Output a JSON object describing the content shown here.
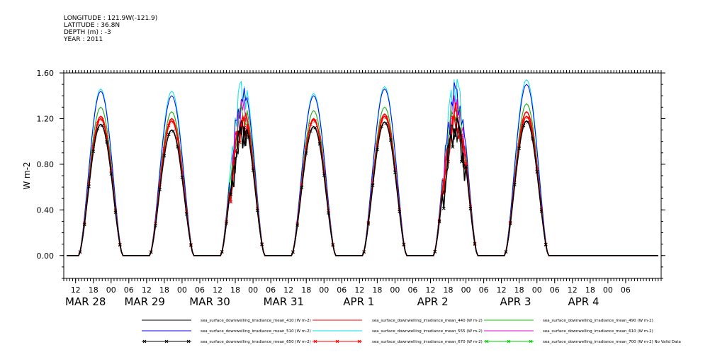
{
  "header": {
    "longitude": "LONGITUDE : 121.9W(-121.9)",
    "latitude": "LATITUDE : 36.8N",
    "depth": "DEPTH (m) : -3",
    "year": "YEAR : 2011"
  },
  "chart_data": {
    "type": "line",
    "title": "",
    "xlabel": "",
    "ylabel": "W m-2",
    "ylim": [
      -0.2,
      1.6
    ],
    "xlim_hours": [
      8,
      210
    ],
    "y_ticks": [
      0.0,
      0.4,
      0.8,
      1.2,
      1.6
    ],
    "y_tick_labels": [
      "0.00",
      "0.40",
      "0.80",
      "1.20",
      "1.60"
    ],
    "x_hour_ticks": [
      {
        "h": 12,
        "label": "12"
      },
      {
        "h": 18,
        "label": "18"
      },
      {
        "h": 24,
        "label": "00"
      },
      {
        "h": 30,
        "label": "06"
      },
      {
        "h": 36,
        "label": "12"
      },
      {
        "h": 42,
        "label": "18"
      },
      {
        "h": 48,
        "label": "00"
      },
      {
        "h": 54,
        "label": "06"
      },
      {
        "h": 60,
        "label": "12"
      },
      {
        "h": 66,
        "label": "18"
      },
      {
        "h": 72,
        "label": "00"
      },
      {
        "h": 78,
        "label": "06"
      },
      {
        "h": 84,
        "label": "12"
      },
      {
        "h": 90,
        "label": "18"
      },
      {
        "h": 96,
        "label": "00"
      },
      {
        "h": 102,
        "label": "06"
      },
      {
        "h": 108,
        "label": "12"
      },
      {
        "h": 114,
        "label": "18"
      },
      {
        "h": 120,
        "label": "00"
      },
      {
        "h": 126,
        "label": "06"
      },
      {
        "h": 132,
        "label": "12"
      },
      {
        "h": 138,
        "label": "18"
      },
      {
        "h": 144,
        "label": "00"
      },
      {
        "h": 150,
        "label": "06"
      },
      {
        "h": 156,
        "label": "12"
      },
      {
        "h": 162,
        "label": "18"
      },
      {
        "h": 168,
        "label": "00"
      },
      {
        "h": 174,
        "label": "06"
      },
      {
        "h": 180,
        "label": "12"
      },
      {
        "h": 186,
        "label": "18"
      },
      {
        "h": 192,
        "label": "00"
      },
      {
        "h": 198,
        "label": "06"
      }
    ],
    "x_date_labels": [
      {
        "h": 8,
        "label": "MAR 28"
      },
      {
        "h": 28,
        "label": "MAR 29"
      },
      {
        "h": 50,
        "label": "MAR 30"
      },
      {
        "h": 75,
        "label": "MAR 31"
      },
      {
        "h": 102,
        "label": "APR  1"
      },
      {
        "h": 127,
        "label": "APR  2"
      },
      {
        "h": 155,
        "label": "APR  3"
      },
      {
        "h": 178,
        "label": "APR  4"
      }
    ],
    "day_peaks": [
      {
        "center_hour": 20.5,
        "peak_410": 1.15,
        "peak_440": 1.22,
        "peak_490": 1.3,
        "peak_510": 1.44,
        "peak_555": 1.46,
        "peak_670": 1.2
      },
      {
        "center_hour": 44.5,
        "peak_410": 1.1,
        "peak_440": 1.2,
        "peak_490": 1.26,
        "peak_510": 1.4,
        "peak_555": 1.44,
        "peak_670": 1.18
      },
      {
        "center_hour": 68.5,
        "peak_410": 1.2,
        "peak_440": 1.3,
        "peak_490": 1.38,
        "peak_510": 1.5,
        "peak_555": 1.57,
        "peak_670": 1.25
      },
      {
        "center_hour": 92.5,
        "peak_410": 1.13,
        "peak_440": 1.2,
        "peak_490": 1.27,
        "peak_510": 1.4,
        "peak_555": 1.42,
        "peak_670": 1.19
      },
      {
        "center_hour": 116.5,
        "peak_410": 1.17,
        "peak_440": 1.24,
        "peak_490": 1.3,
        "peak_510": 1.46,
        "peak_555": 1.48,
        "peak_670": 1.22
      },
      {
        "center_hour": 140.5,
        "peak_410": 1.25,
        "peak_440": 1.35,
        "peak_490": 1.42,
        "peak_510": 1.55,
        "peak_555": 1.58,
        "peak_670": 1.3
      },
      {
        "center_hour": 164.5,
        "peak_410": 1.18,
        "peak_440": 1.26,
        "peak_490": 1.33,
        "peak_510": 1.5,
        "peak_555": 1.54,
        "peak_670": 1.22
      }
    ],
    "series": [
      {
        "name": "sea_surface_downwelling_irradiance_mean_410 (W m-2)",
        "key": "peak_410",
        "color": "#000000",
        "marker": "none"
      },
      {
        "name": "sea_surface_downwelling_irradiance_mean_440 (W m-2)",
        "key": "peak_440",
        "color": "#ff0000",
        "marker": "none"
      },
      {
        "name": "sea_surface_downwelling_irradiance_mean_490 (W m-2)",
        "key": "peak_490",
        "color": "#00cc00",
        "marker": "none"
      },
      {
        "name": "sea_surface_downwelling_irradiance_mean_510 (W m-2)",
        "key": "peak_510",
        "color": "#0000ff",
        "marker": "none"
      },
      {
        "name": "sea_surface_downwelling_irradiance_mean_555 (W m-2)",
        "key": "peak_555",
        "color": "#00e5e5",
        "marker": "none"
      },
      {
        "name": "sea_surface_downwelling_irradiance_mean_610 (W m-2)",
        "key": "peak_490",
        "color": "#e000e0",
        "marker": "none"
      },
      {
        "name": "sea_surface_downwelling_irradiance_mean_650 (W m-2)",
        "key": "peak_410",
        "color": "#000000",
        "marker": "x"
      },
      {
        "name": "sea_surface_downwelling_irradiance_mean_670 (W m-2)",
        "key": "peak_670",
        "color": "#ff0000",
        "marker": "x"
      },
      {
        "name": "sea_surface_downwelling_irradiance_mean_700 (W m-2) No Valid Data",
        "key": null,
        "color": "#00cc00",
        "marker": "x"
      }
    ]
  }
}
